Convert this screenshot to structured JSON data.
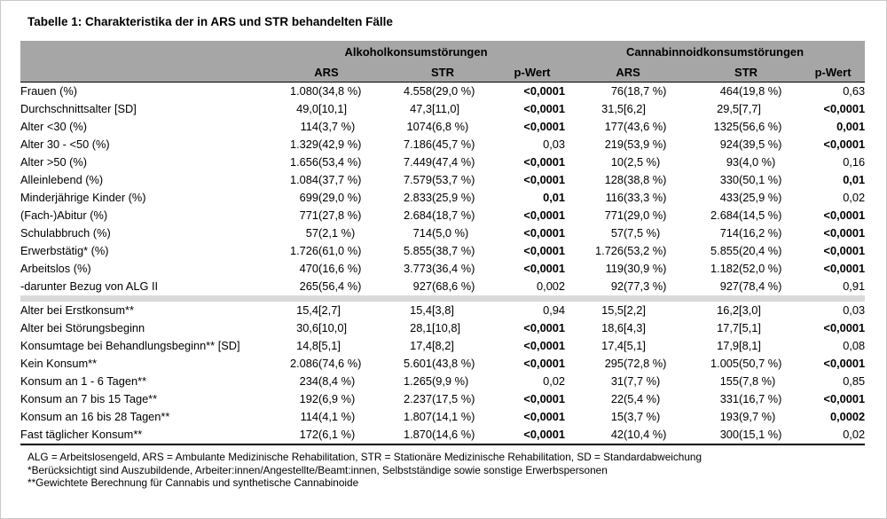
{
  "title": "Tabelle 1: Charakteristika der in ARS und STR behandelten Fälle",
  "table": {
    "group_headers": [
      "Alkoholkonsumstörungen",
      "Cannabinnoidkonsumstörungen"
    ],
    "col_headers": [
      "ARS",
      "STR",
      "p-Wert",
      "ARS",
      "STR",
      "p-Wert"
    ],
    "sections": [
      {
        "rows": [
          {
            "label": "Frauen (%)",
            "a_ars": [
              "1.080",
              "(34,8 %)"
            ],
            "a_str": [
              "4.558",
              "(29,0 %)"
            ],
            "a_p": "<0,0001",
            "a_p_bold": true,
            "c_ars": [
              "76",
              "(18,7 %)"
            ],
            "c_str": [
              "464",
              "(19,8 %)"
            ],
            "c_p": "0,63",
            "c_p_bold": false
          },
          {
            "label": "Durchschnittsalter [SD]",
            "a_ars": [
              "49,0",
              "[10,1]"
            ],
            "a_str": [
              "47,3",
              "[11,0]"
            ],
            "a_p": "<0,0001",
            "a_p_bold": true,
            "c_ars": [
              "31,5",
              "[6,2]"
            ],
            "c_str": [
              "29,5",
              "[7,7]"
            ],
            "c_p": "<0,0001",
            "c_p_bold": true
          },
          {
            "label": "Alter <30 (%)",
            "a_ars": [
              "114",
              "(3,7 %)"
            ],
            "a_str": [
              "1074",
              "(6,8 %)"
            ],
            "a_p": "<0,0001",
            "a_p_bold": true,
            "c_ars": [
              "177",
              "(43,6 %)"
            ],
            "c_str": [
              "1325",
              "(56,6 %)"
            ],
            "c_p": "0,001",
            "c_p_bold": true
          },
          {
            "label": "Alter 30 - <50 (%)",
            "a_ars": [
              "1.329",
              "(42,9 %)"
            ],
            "a_str": [
              "7.186",
              "(45,7 %)"
            ],
            "a_p": "0,03",
            "a_p_bold": false,
            "c_ars": [
              "219",
              "(53,9 %)"
            ],
            "c_str": [
              "924",
              "(39,5 %)"
            ],
            "c_p": "<0,0001",
            "c_p_bold": true
          },
          {
            "label": "Alter >50 (%)",
            "a_ars": [
              "1.656",
              "(53,4 %)"
            ],
            "a_str": [
              "7.449",
              "(47,4 %)"
            ],
            "a_p": "<0,0001",
            "a_p_bold": true,
            "c_ars": [
              "10",
              "(2,5 %)"
            ],
            "c_str": [
              "93",
              "(4,0 %)"
            ],
            "c_p": "0,16",
            "c_p_bold": false
          },
          {
            "label": "Alleinlebend (%)",
            "a_ars": [
              "1.084",
              "(37,7 %)"
            ],
            "a_str": [
              "7.579",
              "(53,7 %)"
            ],
            "a_p": "<0,0001",
            "a_p_bold": true,
            "c_ars": [
              "128",
              "(38,8 %)"
            ],
            "c_str": [
              "330",
              "(50,1 %)"
            ],
            "c_p": "0,01",
            "c_p_bold": true
          },
          {
            "label": "Minderjährige Kinder (%)",
            "a_ars": [
              "699",
              "(29,0 %)"
            ],
            "a_str": [
              "2.833",
              "(25,9 %)"
            ],
            "a_p": "0,01",
            "a_p_bold": true,
            "c_ars": [
              "116",
              "(33,3 %)"
            ],
            "c_str": [
              "433",
              "(25,9 %)"
            ],
            "c_p": "0,02",
            "c_p_bold": false
          },
          {
            "label": "(Fach-)Abitur (%)",
            "a_ars": [
              "771",
              "(27,8 %)"
            ],
            "a_str": [
              "2.684",
              "(18,7 %)"
            ],
            "a_p": "<0,0001",
            "a_p_bold": true,
            "c_ars": [
              "771",
              "(29,0 %)"
            ],
            "c_str": [
              "2.684",
              "(14,5 %)"
            ],
            "c_p": "<0,0001",
            "c_p_bold": true
          },
          {
            "label": "Schulabbruch (%)",
            "a_ars": [
              "57",
              "(2,1 %)"
            ],
            "a_str": [
              "714",
              "(5,0 %)"
            ],
            "a_p": "<0,0001",
            "a_p_bold": true,
            "c_ars": [
              "57",
              "(7,5 %)"
            ],
            "c_str": [
              "714",
              "(16,2 %)"
            ],
            "c_p": "<0,0001",
            "c_p_bold": true
          },
          {
            "label": "Erwerbstätig* (%)",
            "a_ars": [
              "1.726",
              "(61,0 %)"
            ],
            "a_str": [
              "5.855",
              "(38,7 %)"
            ],
            "a_p": "<0,0001",
            "a_p_bold": true,
            "c_ars": [
              "1.726",
              "(53,2 %)"
            ],
            "c_str": [
              "5.855",
              "(20,4 %)"
            ],
            "c_p": "<0,0001",
            "c_p_bold": true
          },
          {
            "label": "Arbeitslos (%)",
            "a_ars": [
              "470",
              "(16,6 %)"
            ],
            "a_str": [
              "3.773",
              "(36,4 %)"
            ],
            "a_p": "<0,0001",
            "a_p_bold": true,
            "c_ars": [
              "119",
              "(30,9 %)"
            ],
            "c_str": [
              "1.182",
              "(52,0 %)"
            ],
            "c_p": "<0,0001",
            "c_p_bold": true
          },
          {
            "label": "-darunter Bezug von ALG II",
            "a_ars": [
              "265",
              "(56,4 %)"
            ],
            "a_str": [
              "927",
              "(68,6 %)"
            ],
            "a_p": "0,002",
            "a_p_bold": false,
            "c_ars": [
              "92",
              "(77,3 %)"
            ],
            "c_str": [
              "927",
              "(78,4 %)"
            ],
            "c_p": "0,91",
            "c_p_bold": false
          }
        ]
      },
      {
        "rows": [
          {
            "label": "Alter bei Erstkonsum**",
            "a_ars": [
              "15,4",
              "[2,7]"
            ],
            "a_str": [
              "15,4",
              "[3,8]"
            ],
            "a_p": "0,94",
            "a_p_bold": false,
            "c_ars": [
              "15,5",
              "[2,2]"
            ],
            "c_str": [
              "16,2",
              "[3,0]"
            ],
            "c_p": "0,03",
            "c_p_bold": false
          },
          {
            "label": "Alter bei Störungsbeginn",
            "a_ars": [
              "30,6",
              "[10,0]"
            ],
            "a_str": [
              "28,1",
              "[10,8]"
            ],
            "a_p": "<0,0001",
            "a_p_bold": true,
            "c_ars": [
              "18,6",
              "[4,3]"
            ],
            "c_str": [
              "17,7",
              "[5,1]"
            ],
            "c_p": "<0,0001",
            "c_p_bold": true
          },
          {
            "label": "Konsumtage bei Behandlungsbeginn** [SD]",
            "a_ars": [
              "14,8",
              "[5,1]"
            ],
            "a_str": [
              "17,4",
              "[8,2]"
            ],
            "a_p": "<0,0001",
            "a_p_bold": true,
            "c_ars": [
              "17,4",
              "[5,1]"
            ],
            "c_str": [
              "17,9",
              "[8,1]"
            ],
            "c_p": "0,08",
            "c_p_bold": false
          },
          {
            "label": "Kein Konsum**",
            "a_ars": [
              "2.086",
              "(74,6 %)"
            ],
            "a_str": [
              "5.601",
              "(43,8 %)"
            ],
            "a_p": "<0,0001",
            "a_p_bold": true,
            "c_ars": [
              "295",
              "(72,8 %)"
            ],
            "c_str": [
              "1.005",
              "(50,7 %)"
            ],
            "c_p": "<0,0001",
            "c_p_bold": true
          },
          {
            "label": "Konsum an 1 - 6 Tagen**",
            "a_ars": [
              "234",
              "(8,4 %)"
            ],
            "a_str": [
              "1.265",
              "(9,9 %)"
            ],
            "a_p": "0,02",
            "a_p_bold": false,
            "c_ars": [
              "31",
              "(7,7 %)"
            ],
            "c_str": [
              "155",
              "(7,8 %)"
            ],
            "c_p": "0,85",
            "c_p_bold": false
          },
          {
            "label": "Konsum an 7 bis 15 Tage**",
            "a_ars": [
              "192",
              "(6,9 %)"
            ],
            "a_str": [
              "2.237",
              "(17,5 %)"
            ],
            "a_p": "<0,0001",
            "a_p_bold": true,
            "c_ars": [
              "22",
              "(5,4 %)"
            ],
            "c_str": [
              "331",
              "(16,7 %)"
            ],
            "c_p": "<0,0001",
            "c_p_bold": true
          },
          {
            "label": "Konsum an 16 bis 28 Tagen**",
            "a_ars": [
              "114",
              "(4,1 %)"
            ],
            "a_str": [
              "1.807",
              "(14,1 %)"
            ],
            "a_p": "<0,0001",
            "a_p_bold": true,
            "c_ars": [
              "15",
              "(3,7 %)"
            ],
            "c_str": [
              "193",
              "(9,7 %)"
            ],
            "c_p": "0,0002",
            "c_p_bold": true
          },
          {
            "label": "Fast täglicher Konsum**",
            "a_ars": [
              "172",
              "(6,1 %)"
            ],
            "a_str": [
              "1.870",
              "(14,6 %)"
            ],
            "a_p": "<0,0001",
            "a_p_bold": true,
            "c_ars": [
              "42",
              "(10,4 %)"
            ],
            "c_str": [
              "300",
              "(15,1 %)"
            ],
            "c_p": "0,02",
            "c_p_bold": false
          }
        ]
      }
    ]
  },
  "footnotes": [
    "ALG = Arbeitslosengeld, ARS = Ambulante Medizinische Rehabilitation, STR = Stationäre Medizinische Rehabilitation, SD = Standardabweichung",
    "*Berücksichtigt sind Auszubildende, Arbeiter:innen/Angestellte/Beamt:innen, Selbstständige sowie sonstige Erwerbspersonen",
    "**Gewichtete Berechnung für Cannabis und synthetische Cannabinoide"
  ]
}
